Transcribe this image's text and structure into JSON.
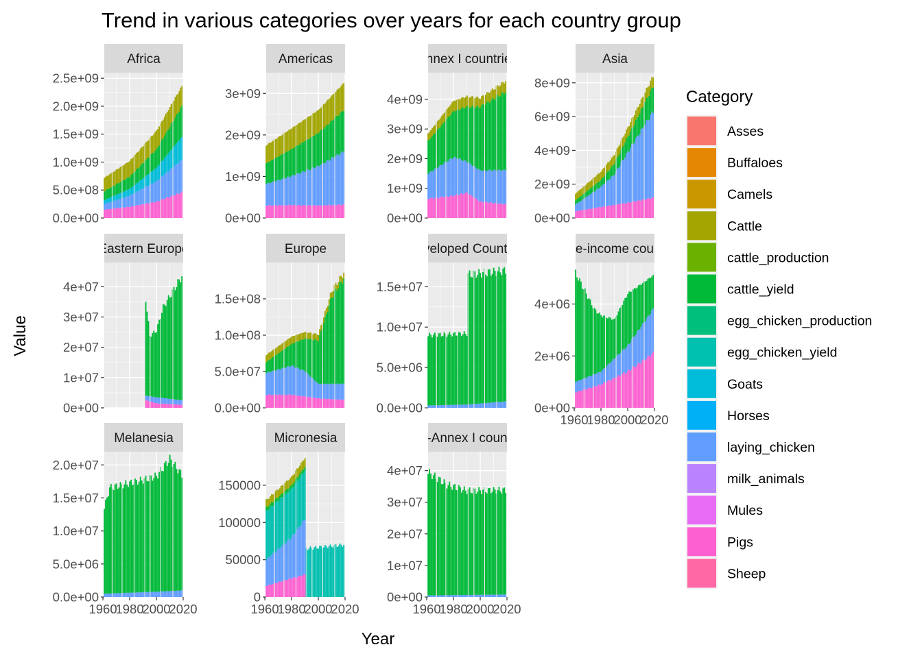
{
  "chart_data": {
    "type": "area",
    "title": "Trend in various categories over years for each country group",
    "xlabel": "Year",
    "ylabel": "Value",
    "legend": {
      "title": "Category",
      "position": "right",
      "items": [
        {
          "name": "Asses",
          "color": "#F8766D"
        },
        {
          "name": "Buffaloes",
          "color": "#E58700"
        },
        {
          "name": "Camels",
          "color": "#C99800"
        },
        {
          "name": "Cattle",
          "color": "#A3A500"
        },
        {
          "name": "cattle_production",
          "color": "#6BB100"
        },
        {
          "name": "cattle_yield",
          "color": "#00BA38"
        },
        {
          "name": "egg_chicken_production",
          "color": "#00BF7D"
        },
        {
          "name": "egg_chicken_yield",
          "color": "#00C0AF"
        },
        {
          "name": "Goats",
          "color": "#00BCD8"
        },
        {
          "name": "Horses",
          "color": "#00B0F6"
        },
        {
          "name": "laying_chicken",
          "color": "#619CFF"
        },
        {
          "name": "milk_animals",
          "color": "#B983FF"
        },
        {
          "name": "Mules",
          "color": "#E76BF3"
        },
        {
          "name": "Pigs",
          "color": "#FD61D1"
        },
        {
          "name": "Sheep",
          "color": "#FF67A4"
        }
      ]
    },
    "xlim": [
      1961,
      2020
    ],
    "x_ticks": [
      "1960",
      "1980",
      "2000",
      "2020"
    ],
    "grid": true,
    "facets": [
      {
        "name": "Africa",
        "ylim": [
          0,
          2600000000.0
        ],
        "yticks": [
          {
            "v": 0,
            "label": "0.0e+00"
          },
          {
            "v": 500000000.0,
            "label": "5.0e+08"
          },
          {
            "v": 1000000000.0,
            "label": "1.0e+09"
          },
          {
            "v": 1500000000.0,
            "label": "1.5e+09"
          },
          {
            "v": 2000000000.0,
            "label": "2.0e+09"
          },
          {
            "v": 2500000000.0,
            "label": "2.5e+09"
          }
        ],
        "series": [
          {
            "name": "Pigs",
            "x": [
              1961,
              1980,
              2000,
              2019
            ],
            "y": [
              150000000.0,
              200000000.0,
              290000000.0,
              460000000.0
            ]
          },
          {
            "name": "laying_chicken",
            "x": [
              1961,
              1980,
              2000,
              2019
            ],
            "y": [
              100000000.0,
              200000000.0,
              370000000.0,
              580000000.0
            ]
          },
          {
            "name": "Goats",
            "x": [
              1961,
              1980,
              2000,
              2019
            ],
            "y": [
              70000000.0,
              120000000.0,
              240000000.0,
              410000000.0
            ]
          },
          {
            "name": "cattle_yield",
            "x": [
              1961,
              1980,
              2000,
              2019
            ],
            "y": [
              160000000.0,
              220000000.0,
              330000000.0,
              550000000.0
            ]
          },
          {
            "name": "Cattle",
            "x": [
              1961,
              1980,
              2000,
              2019
            ],
            "y": [
              240000000.0,
              280000000.0,
              330000000.0,
              360000000.0
            ]
          }
        ]
      },
      {
        "name": "Americas",
        "ylim": [
          0,
          3500000000.0
        ],
        "yticks": [
          {
            "v": 0,
            "label": "0e+00"
          },
          {
            "v": 1000000000.0,
            "label": "1e+09"
          },
          {
            "v": 2000000000.0,
            "label": "2e+09"
          },
          {
            "v": 3000000000.0,
            "label": "3e+09"
          }
        ],
        "series": [
          {
            "name": "Pigs",
            "x": [
              1961,
              1980,
              2000,
              2019
            ],
            "y": [
              300000000.0,
              310000000.0,
              300000000.0,
              320000000.0
            ]
          },
          {
            "name": "laying_chicken",
            "x": [
              1961,
              1980,
              2000,
              2019
            ],
            "y": [
              520000000.0,
              700000000.0,
              950000000.0,
              1280000000.0
            ]
          },
          {
            "name": "cattle_yield",
            "x": [
              1961,
              1980,
              2000,
              2019
            ],
            "y": [
              500000000.0,
              650000000.0,
              800000000.0,
              1000000000.0
            ]
          },
          {
            "name": "Cattle",
            "x": [
              1961,
              1980,
              2000,
              2019
            ],
            "y": [
              430000000.0,
              500000000.0,
              550000000.0,
              650000000.0
            ]
          }
        ]
      },
      {
        "name": "Annex I countries",
        "ylim": [
          0,
          4900000000.0
        ],
        "yticks": [
          {
            "v": 0,
            "label": "0e+00"
          },
          {
            "v": 1000000000.0,
            "label": "1e+09"
          },
          {
            "v": 2000000000.0,
            "label": "2e+09"
          },
          {
            "v": 3000000000.0,
            "label": "3e+09"
          },
          {
            "v": 4000000000.0,
            "label": "4e+09"
          }
        ],
        "series": [
          {
            "name": "Pigs",
            "x": [
              1961,
              1980,
              1990,
              2000,
              2019
            ],
            "y": [
              650000000.0,
              750000000.0,
              850000000.0,
              550000000.0,
              460000000.0
            ]
          },
          {
            "name": "laying_chicken",
            "x": [
              1961,
              1980,
              1990,
              2000,
              2019
            ],
            "y": [
              850000000.0,
              1300000000.0,
              1050000000.0,
              1050000000.0,
              1150000000.0
            ]
          },
          {
            "name": "cattle_yield",
            "x": [
              1961,
              1980,
              1990,
              2000,
              2019
            ],
            "y": [
              1100000000.0,
              1550000000.0,
              1850000000.0,
              2150000000.0,
              2650000000.0
            ]
          },
          {
            "name": "Cattle",
            "x": [
              1961,
              1980,
              1990,
              2000,
              2019
            ],
            "y": [
              250000000.0,
              350000000.0,
              350000000.0,
              300000000.0,
              360000000.0
            ]
          }
        ]
      },
      {
        "name": "Asia",
        "ylim": [
          0,
          8600000000.0
        ],
        "yticks": [
          {
            "v": 0,
            "label": "0e+00"
          },
          {
            "v": 2000000000.0,
            "label": "2e+09"
          },
          {
            "v": 4000000000.0,
            "label": "4e+09"
          },
          {
            "v": 6000000000.0,
            "label": "6e+09"
          },
          {
            "v": 8000000000.0,
            "label": "8e+09"
          }
        ],
        "series": [
          {
            "name": "Pigs",
            "x": [
              1961,
              1980,
              2000,
              2019
            ],
            "y": [
              400000000.0,
              650000000.0,
              900000000.0,
              1200000000.0
            ]
          },
          {
            "name": "laying_chicken",
            "x": [
              1961,
              1980,
              1990,
              2000,
              2019
            ],
            "y": [
              400000000.0,
              1200000000.0,
              1800000000.0,
              3000000000.0,
              5100000000.0
            ]
          },
          {
            "name": "cattle_yield",
            "x": [
              1961,
              1980,
              2000,
              2019
            ],
            "y": [
              250000000.0,
              400000000.0,
              900000000.0,
              1500000000.0
            ]
          },
          {
            "name": "Cattle",
            "x": [
              1961,
              1980,
              2000,
              2019
            ],
            "y": [
              400000000.0,
              500000000.0,
              550000000.0,
              600000000.0
            ]
          }
        ]
      },
      {
        "name": "Eastern Europe",
        "ylim": [
          0,
          48000000.0
        ],
        "yticks": [
          {
            "v": 0,
            "label": "0e+00"
          },
          {
            "v": 10000000.0,
            "label": "1e+07"
          },
          {
            "v": 20000000.0,
            "label": "2e+07"
          },
          {
            "v": 30000000.0,
            "label": "3e+07"
          },
          {
            "v": 40000000.0,
            "label": "4e+07"
          }
        ],
        "series": [
          {
            "name": "Pigs",
            "x": [
              1992,
              2000,
              2019
            ],
            "y": [
              2500000.0,
              1500000.0,
              1000000.0
            ]
          },
          {
            "name": "laying_chicken",
            "x": [
              1992,
              2000,
              2019
            ],
            "y": [
              1500000.0,
              2000000.0,
              1500000.0
            ]
          },
          {
            "name": "cattle_yield",
            "x": [
              1992,
              1995,
              2000,
              2005,
              2019
            ],
            "y": [
              32000000.0,
              20000000.0,
              22000000.0,
              30000000.0,
              41000000.0
            ]
          }
        ]
      },
      {
        "name": "Europe",
        "ylim": [
          0,
          200000000.0
        ],
        "yticks": [
          {
            "v": 0,
            "label": "0.0e+00"
          },
          {
            "v": 50000000.0,
            "label": "5.0e+07"
          },
          {
            "v": 100000000.0,
            "label": "1.0e+08"
          },
          {
            "v": 150000000.0,
            "label": "1.5e+08"
          }
        ],
        "series": [
          {
            "name": "Pigs",
            "x": [
              1961,
              1980,
              2000,
              2019
            ],
            "y": [
              18000000.0,
              18000000.0,
              13000000.0,
              11000000.0
            ]
          },
          {
            "name": "laying_chicken",
            "x": [
              1961,
              1980,
              1990,
              2000,
              2019
            ],
            "y": [
              30000000.0,
              40000000.0,
              35000000.0,
              20000000.0,
              22000000.0
            ]
          },
          {
            "name": "cattle_yield",
            "x": [
              1961,
              1980,
              2000,
              2010,
              2019
            ],
            "y": [
              15000000.0,
              30000000.0,
              60000000.0,
              120000000.0,
              145000000.0
            ]
          },
          {
            "name": "Cattle",
            "x": [
              1961,
              1980,
              2000,
              2019
            ],
            "y": [
              10000000.0,
              10000000.0,
              8000000.0,
              8000000.0
            ]
          }
        ]
      },
      {
        "name": "Developed Countries",
        "ylim": [
          0,
          18000000.0
        ],
        "yticks": [
          {
            "v": 0,
            "label": "0.0e+00"
          },
          {
            "v": 5000000.0,
            "label": "5.0e+06"
          },
          {
            "v": 10000000.0,
            "label": "1.0e+07"
          },
          {
            "v": 15000000.0,
            "label": "1.5e+07"
          }
        ],
        "series": [
          {
            "name": "laying_chicken",
            "x": [
              1961,
              1990,
              2019
            ],
            "y": [
              300000.0,
              400000.0,
              800000.0
            ]
          },
          {
            "name": "cattle_yield",
            "x": [
              1961,
              1990,
              1991,
              2019
            ],
            "y": [
              8700000.0,
              8800000.0,
              16100000.0,
              16200000.0
            ]
          }
        ]
      },
      {
        "name": "Middle-income countries",
        "ylim": [
          0,
          5600000.0
        ],
        "yticks": [
          {
            "v": 0,
            "label": "0e+00"
          },
          {
            "v": 2000000.0,
            "label": "2e+06"
          },
          {
            "v": 4000000.0,
            "label": "4e+06"
          }
        ],
        "series": [
          {
            "name": "Pigs",
            "x": [
              1961,
              1980,
              2000,
              2019
            ],
            "y": [
              600000.0,
              900000.0,
              1400000.0,
              2100000.0
            ]
          },
          {
            "name": "laying_chicken",
            "x": [
              1961,
              1980,
              2000,
              2019
            ],
            "y": [
              400000.0,
              500000.0,
              1000000.0,
              1700000.0
            ]
          },
          {
            "name": "cattle_yield",
            "x": [
              1961,
              1975,
              1990,
              2000,
              2019
            ],
            "y": [
              4200000.0,
              2500000.0,
              1500000.0,
              2000000.0,
              1300000.0
            ]
          }
        ]
      },
      {
        "name": "Melanesia",
        "ylim": [
          0,
          22000000.0
        ],
        "yticks": [
          {
            "v": 0,
            "label": "0.0e+00"
          },
          {
            "v": 5000000.0,
            "label": "5.0e+06"
          },
          {
            "v": 10000000.0,
            "label": "1.0e+07"
          },
          {
            "v": 15000000.0,
            "label": "1.5e+07"
          },
          {
            "v": 20000000.0,
            "label": "2.0e+07"
          }
        ],
        "series": [
          {
            "name": "laying_chicken",
            "x": [
              1961,
              2000,
              2019
            ],
            "y": [
              500000.0,
              800000.0,
              1000000.0
            ]
          },
          {
            "name": "cattle_yield",
            "x": [
              1961,
              1965,
              1990,
              2000,
              2010,
              2019
            ],
            "y": [
              13000000.0,
              16000000.0,
              17000000.0,
              17500000.0,
              20000000.0,
              17500000.0
            ]
          }
        ]
      },
      {
        "name": "Micronesia",
        "ylim": [
          0,
          195000
        ],
        "yticks": [
          {
            "v": 0,
            "label": "0"
          },
          {
            "v": 50000,
            "label": "50000"
          },
          {
            "v": 100000,
            "label": "100000"
          },
          {
            "v": 150000,
            "label": "150000"
          }
        ],
        "series": [
          {
            "name": "Pigs",
            "x": [
              1961,
              1980,
              1990
            ],
            "y": [
              15000,
              25000,
              30000
            ]
          },
          {
            "name": "laying_chicken",
            "x": [
              1961,
              1980,
              1990
            ],
            "y": [
              35000,
              55000,
              75000
            ]
          },
          {
            "name": "egg_chicken_yield",
            "x": [
              1961,
              1980,
              1990,
              1991,
              2019
            ],
            "y": [
              65000,
              65000,
              65000,
              65000,
              70000
            ]
          },
          {
            "name": "cattle_yield",
            "x": [
              1961,
              1990
            ],
            "y": [
              5000,
              5000
            ]
          },
          {
            "name": "Cattle",
            "x": [
              1961,
              1990
            ],
            "y": [
              10000,
              12000
            ]
          }
        ]
      },
      {
        "name": "Non-Annex I countries",
        "ylim": [
          0,
          46000000.0
        ],
        "yticks": [
          {
            "v": 0,
            "label": "0e+00"
          },
          {
            "v": 10000000.0,
            "label": "1e+07"
          },
          {
            "v": 20000000.0,
            "label": "2e+07"
          },
          {
            "v": 30000000.0,
            "label": "3e+07"
          },
          {
            "v": 40000000.0,
            "label": "4e+07"
          }
        ],
        "series": [
          {
            "name": "laying_chicken",
            "x": [
              1961,
              2019
            ],
            "y": [
              500000.0,
              800000.0
            ]
          },
          {
            "name": "cattle_yield",
            "x": [
              1961,
              1975,
              1990,
              2000,
              2019
            ],
            "y": [
              39000000.0,
              35000000.0,
              33000000.0,
              33000000.0,
              33000000.0
            ]
          }
        ]
      }
    ]
  }
}
